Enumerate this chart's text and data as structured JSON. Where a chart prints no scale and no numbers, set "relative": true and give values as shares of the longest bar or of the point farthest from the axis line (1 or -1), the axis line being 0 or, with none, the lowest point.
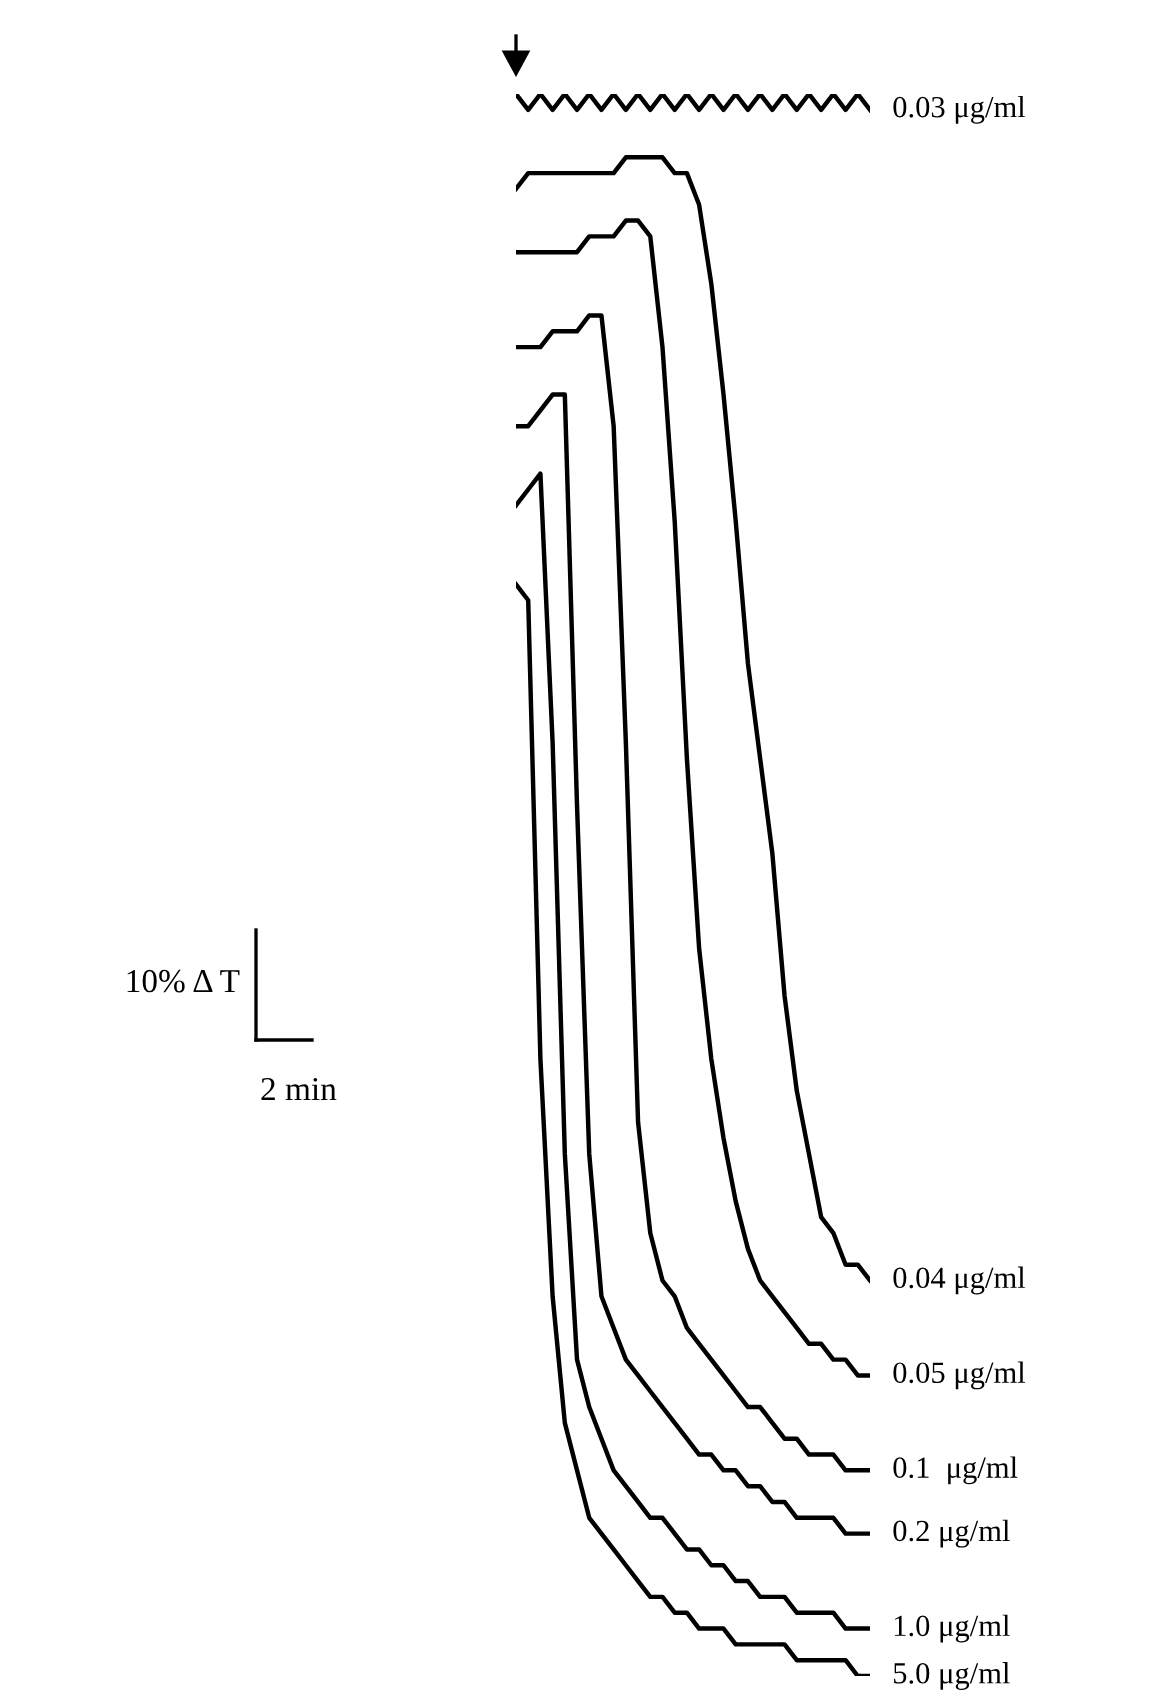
{
  "chart_data": {
    "type": "line",
    "relative": true,
    "annotations": [
      "10% Δ T",
      "2 min"
    ],
    "categories": [
      null,
      null,
      null,
      null,
      null,
      null,
      null,
      null,
      null,
      null,
      null,
      null,
      null,
      null,
      null,
      null,
      null,
      null,
      null,
      null,
      null,
      null,
      null,
      null,
      null,
      null,
      null,
      null,
      null,
      null
    ],
    "series": [
      {
        "name": "0.03 μg/ml",
        "color": "#000000",
        "values": [
          1.0,
          0.99,
          1.0,
          0.99,
          1.0,
          0.99,
          1.0,
          0.99,
          1.0,
          0.99,
          1.0,
          0.99,
          1.0,
          0.99,
          1.0,
          0.99,
          1.0,
          0.99,
          1.0,
          0.99,
          1.0,
          0.99,
          1.0,
          0.99,
          1.0,
          0.99,
          1.0,
          0.99,
          1.0,
          0.99
        ]
      },
      {
        "name": "0.04 μg/ml",
        "color": "#000000",
        "values": [
          0.94,
          0.95,
          0.95,
          0.95,
          0.95,
          0.95,
          0.95,
          0.95,
          0.95,
          0.96,
          0.96,
          0.96,
          0.96,
          0.95,
          0.95,
          0.93,
          0.88,
          0.81,
          0.73,
          0.64,
          0.58,
          0.52,
          0.43,
          0.37,
          0.33,
          0.29,
          0.28,
          0.26,
          0.26,
          0.25
        ]
      },
      {
        "name": "0.05 μg/ml",
        "color": "#000000",
        "values": [
          0.9,
          0.9,
          0.9,
          0.9,
          0.9,
          0.9,
          0.91,
          0.91,
          0.91,
          0.92,
          0.92,
          0.91,
          0.84,
          0.73,
          0.58,
          0.46,
          0.39,
          0.34,
          0.3,
          0.27,
          0.25,
          0.24,
          0.23,
          0.22,
          0.21,
          0.21,
          0.2,
          0.2,
          0.19,
          0.19
        ]
      },
      {
        "name": "0.1  μg/ml",
        "color": "#000000",
        "values": [
          0.84,
          0.84,
          0.84,
          0.85,
          0.85,
          0.85,
          0.86,
          0.86,
          0.79,
          0.59,
          0.35,
          0.28,
          0.25,
          0.24,
          0.22,
          0.21,
          0.2,
          0.19,
          0.18,
          0.17,
          0.17,
          0.16,
          0.15,
          0.15,
          0.14,
          0.14,
          0.14,
          0.13,
          0.13,
          0.13
        ]
      },
      {
        "name": "0.2 μg/ml",
        "color": "#000000",
        "values": [
          0.79,
          0.79,
          0.8,
          0.81,
          0.81,
          0.55,
          0.33,
          0.24,
          0.22,
          0.2,
          0.19,
          0.18,
          0.17,
          0.16,
          0.15,
          0.14,
          0.14,
          0.13,
          0.13,
          0.12,
          0.12,
          0.11,
          0.11,
          0.1,
          0.1,
          0.1,
          0.1,
          0.09,
          0.09,
          0.09
        ]
      },
      {
        "name": "1.0 μg/ml",
        "color": "#000000",
        "values": [
          0.74,
          0.75,
          0.76,
          0.59,
          0.33,
          0.2,
          0.17,
          0.15,
          0.13,
          0.12,
          0.11,
          0.1,
          0.1,
          0.09,
          0.08,
          0.08,
          0.07,
          0.07,
          0.06,
          0.06,
          0.05,
          0.05,
          0.05,
          0.04,
          0.04,
          0.04,
          0.04,
          0.03,
          0.03,
          0.03
        ]
      },
      {
        "name": "5.0 μg/ml",
        "color": "#000000",
        "values": [
          0.69,
          0.68,
          0.39,
          0.24,
          0.16,
          0.13,
          0.1,
          0.09,
          0.08,
          0.07,
          0.06,
          0.05,
          0.05,
          0.04,
          0.04,
          0.03,
          0.03,
          0.03,
          0.02,
          0.02,
          0.02,
          0.02,
          0.02,
          0.01,
          0.01,
          0.01,
          0.01,
          0.01,
          0.0,
          0.0
        ]
      }
    ]
  }
}
